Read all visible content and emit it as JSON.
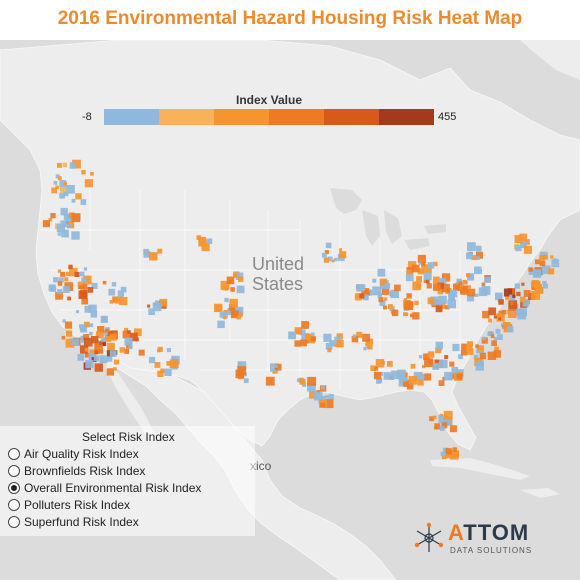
{
  "title": "2016 Environmental Hazard Housing Risk Heat Map",
  "legend": {
    "title": "Index Value",
    "min_label": "-8",
    "max_label": "455",
    "colors": [
      "#8fb9dc",
      "#f9b25a",
      "#f6952f",
      "#ee7a22",
      "#d85a1b",
      "#a33a1e"
    ]
  },
  "map_labels": {
    "country_1": "United",
    "country_2": "States",
    "mexico": "xico"
  },
  "selector": {
    "title": "Select Risk Index",
    "options": [
      {
        "label": "Air Quality Risk Index",
        "selected": false
      },
      {
        "label": "Brownfields Risk Index",
        "selected": false
      },
      {
        "label": "Overall Environmental Risk Index",
        "selected": true
      },
      {
        "label": "Polluters Risk Index",
        "selected": false
      },
      {
        "label": "Superfund Risk Index",
        "selected": false
      }
    ]
  },
  "logo": {
    "name_a": "A",
    "name_rest": "TTOM",
    "tagline": "DATA SOLUTIONS"
  },
  "colors": {
    "title": "#ee8a2e",
    "land": "#ededed",
    "water": "#dcdcdc"
  }
}
